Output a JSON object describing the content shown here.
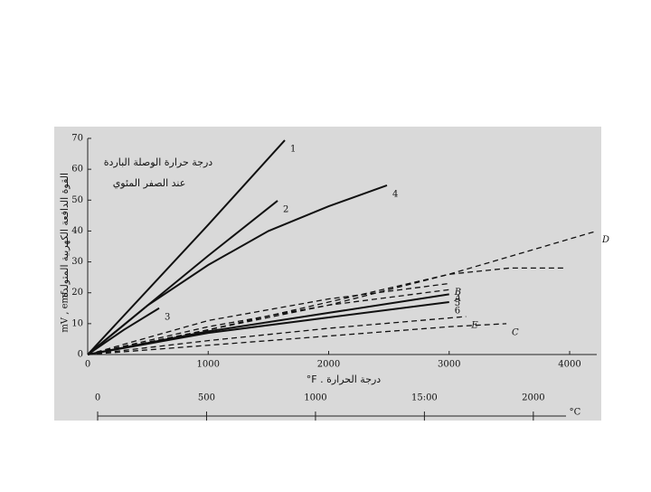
{
  "chart_data": {
    "type": "line",
    "y_label_ar": "القوة الدافعة الكهربية المتولدة",
    "y_label": "mV , emf",
    "note_lines": [
      "درجة حرارة الوصلة الباردة",
      "عند الصفر المئوي"
    ],
    "x_label": "°F . درجة الحرارة",
    "x2_label": "°C",
    "xlim": [
      0,
      4225
    ],
    "xticks": [
      0,
      1000,
      2000,
      3000,
      4000
    ],
    "ylim": [
      0,
      70
    ],
    "yticks": [
      0,
      10,
      20,
      30,
      40,
      50,
      60,
      70
    ],
    "x2lim": [
      0,
      2150
    ],
    "x2ticks": [
      0,
      500,
      1000,
      {
        "value": 1500,
        "label": "15:00"
      },
      2000
    ],
    "series": [
      {
        "name": "1",
        "color": "#111111",
        "dashed": false,
        "x": [
          0,
          500,
          1000,
          1636
        ],
        "values": [
          0,
          21,
          42,
          69.4
        ]
      },
      {
        "name": "2",
        "color": "#111111",
        "dashed": false,
        "x": [
          0,
          500,
          1000,
          1576
        ],
        "values": [
          0,
          16,
          32,
          49.8
        ]
      },
      {
        "name": "3",
        "color": "#111111",
        "dashed": false,
        "x": [
          0,
          300,
          593
        ],
        "values": [
          0,
          8,
          15
        ]
      },
      {
        "name": "4",
        "color": "#111111",
        "dashed": false,
        "x": [
          0,
          500,
          1000,
          1500,
          2000,
          2484
        ],
        "values": [
          0,
          16,
          29,
          40,
          48,
          54.8
        ]
      },
      {
        "name": "5",
        "color": "#111111",
        "dashed": false,
        "x": [
          0,
          1000,
          2000,
          3000
        ],
        "values": [
          0,
          7.5,
          13.5,
          19.5
        ]
      },
      {
        "name": "6",
        "color": "#111111",
        "dashed": false,
        "x": [
          0,
          1000,
          2000,
          3000
        ],
        "values": [
          0,
          7,
          12,
          17
        ]
      },
      {
        "name": "A",
        "color": "#111111",
        "dashed": true,
        "x": [
          0,
          1000,
          2000,
          3000
        ],
        "values": [
          0,
          9,
          16,
          21
        ]
      },
      {
        "name": "B",
        "color": "#111111",
        "dashed": true,
        "x": [
          0,
          1000,
          2000,
          3000
        ],
        "values": [
          0,
          11,
          18,
          23
        ]
      },
      {
        "name": "D",
        "color": "#111111",
        "dashed": true,
        "x": [
          0,
          1000,
          2000,
          3000,
          4225
        ],
        "values": [
          0,
          8,
          16,
          26,
          40
        ]
      },
      {
        "color": "#111111",
        "dashed": true,
        "x": [
          0,
          1000,
          2000,
          3000,
          3500,
          3960
        ],
        "values": [
          0,
          8,
          17,
          26,
          28,
          28
        ]
      },
      {
        "name": "E",
        "color": "#111111",
        "dashed": true,
        "x": [
          0,
          1000,
          2000,
          3140
        ],
        "values": [
          0,
          4.5,
          8.5,
          12.3
        ]
      },
      {
        "name": "C",
        "color": "#111111",
        "dashed": true,
        "x": [
          0,
          1000,
          2000,
          3000,
          3475
        ],
        "values": [
          0,
          3,
          6,
          9,
          10
        ]
      }
    ]
  }
}
